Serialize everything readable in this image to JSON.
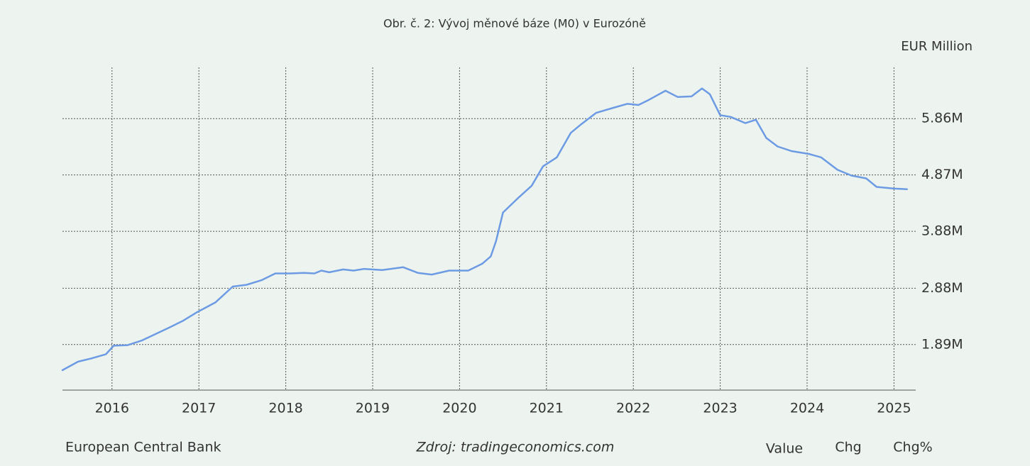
{
  "chart_data": {
    "type": "line",
    "title": "Obr. č. 2: Vývoj měnové báze (M0) v Eurozóně",
    "y_axis_label": "EUR Million",
    "color": "#6d9be3",
    "grid": true,
    "x": [
      2015.43,
      2015.61,
      2015.77,
      2015.93,
      2016.02,
      2016.18,
      2016.34,
      2016.66,
      2016.82,
      2016.98,
      2017.19,
      2017.39,
      2017.55,
      2017.72,
      2017.88,
      2018.05,
      2018.21,
      2018.33,
      2018.41,
      2018.5,
      2018.66,
      2018.78,
      2018.9,
      2019.11,
      2019.35,
      2019.52,
      2019.68,
      2019.88,
      2020.1,
      2020.26,
      2020.36,
      2020.42,
      2020.5,
      2020.67,
      2020.83,
      2020.96,
      2021.12,
      2021.28,
      2021.4,
      2021.57,
      2021.77,
      2021.93,
      2022.06,
      2022.18,
      2022.37,
      2022.51,
      2022.67,
      2022.79,
      2022.88,
      2023.0,
      2023.12,
      2023.29,
      2023.41,
      2023.53,
      2023.66,
      2023.82,
      2024.02,
      2024.16,
      2024.35,
      2024.51,
      2024.68,
      2024.8,
      2025.0,
      2025.15
    ],
    "values": [
      1.44,
      1.59,
      1.65,
      1.72,
      1.87,
      1.88,
      1.96,
      2.19,
      2.31,
      2.46,
      2.63,
      2.91,
      2.94,
      3.02,
      3.14,
      3.14,
      3.15,
      3.14,
      3.19,
      3.16,
      3.21,
      3.19,
      3.22,
      3.2,
      3.25,
      3.15,
      3.12,
      3.19,
      3.19,
      3.31,
      3.44,
      3.71,
      4.21,
      4.46,
      4.68,
      5.02,
      5.18,
      5.61,
      5.76,
      5.96,
      6.05,
      6.12,
      6.1,
      6.19,
      6.35,
      6.24,
      6.25,
      6.39,
      6.29,
      5.92,
      5.89,
      5.78,
      5.84,
      5.52,
      5.37,
      5.29,
      5.24,
      5.18,
      4.96,
      4.86,
      4.81,
      4.66,
      4.63,
      4.62
    ],
    "xlim": [
      2015.43,
      2025.25
    ],
    "xticks": [
      2016,
      2017,
      2018,
      2019,
      2020,
      2021,
      2022,
      2023,
      2024,
      2025
    ],
    "ylim": [
      1.09,
      6.76
    ],
    "yticks": [
      {
        "value": 1.89,
        "label": "1.89M"
      },
      {
        "value": 2.88,
        "label": "2.88M"
      },
      {
        "value": 3.88,
        "label": "3.88M"
      },
      {
        "value": 4.87,
        "label": "4.87M"
      },
      {
        "value": 5.86,
        "label": "5.86M"
      }
    ]
  },
  "footer": {
    "source": "European Central Bank",
    "credit": "Zdroj: tradingeconomics.com",
    "buttons": [
      "Value",
      "Chg",
      "Chg%"
    ]
  }
}
